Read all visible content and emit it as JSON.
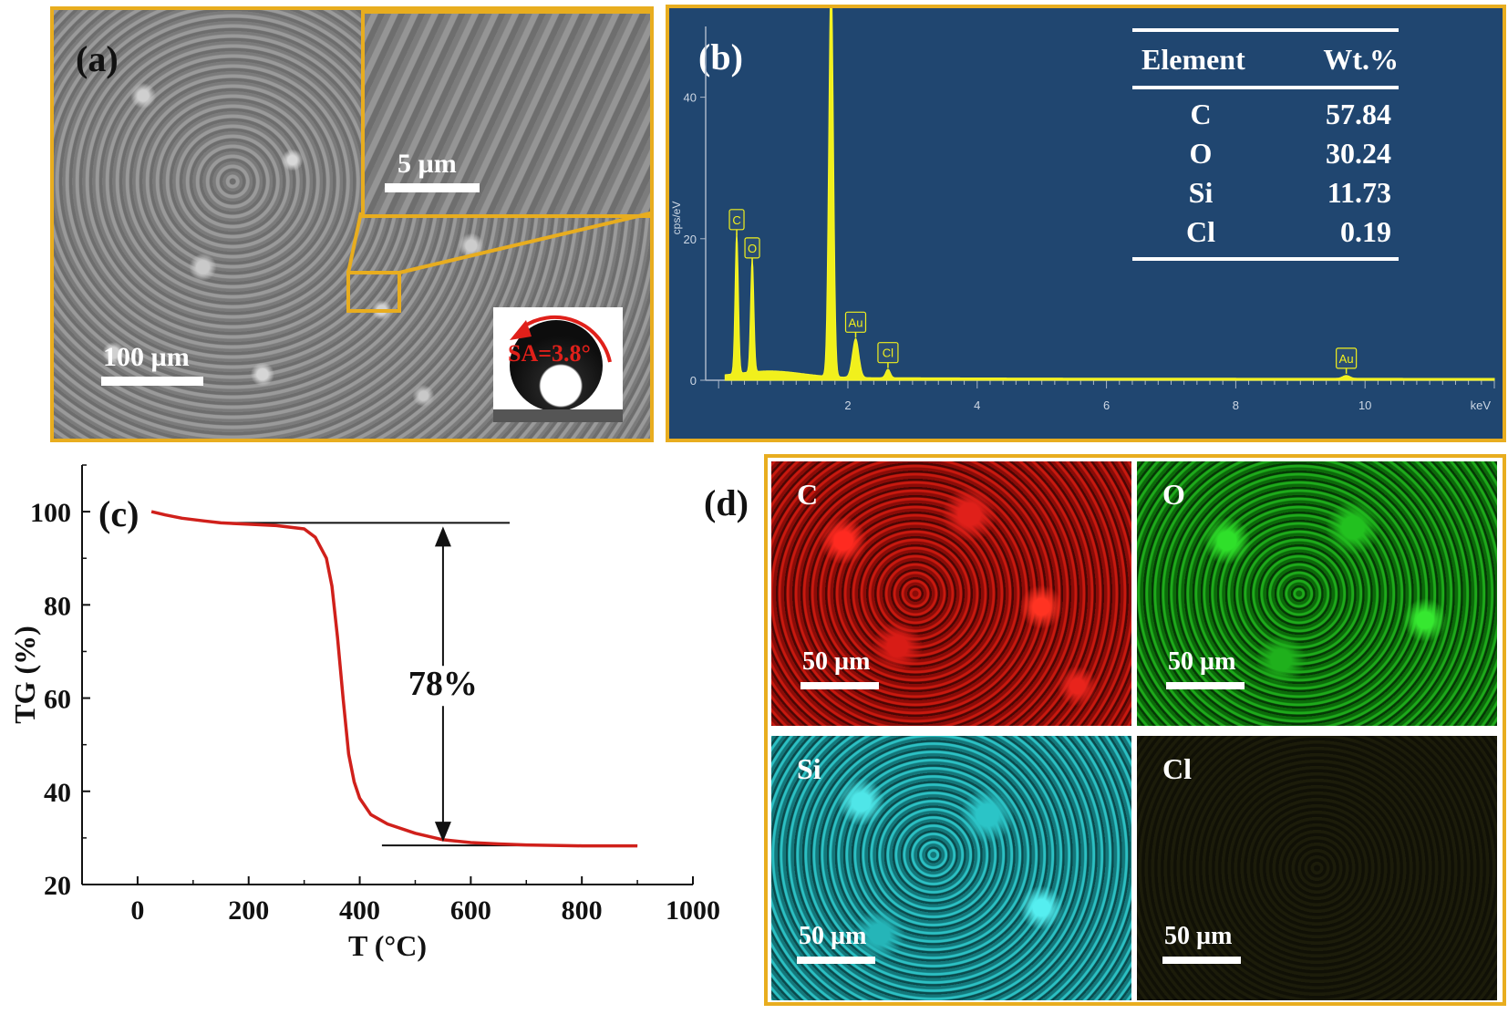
{
  "panel_a": {
    "label": "(a)",
    "inset_scale": "5 µm",
    "main_scale": "100 µm",
    "sa_label": "SA=3.8°"
  },
  "panel_b": {
    "label": "(b)",
    "y_axis_label": "cps/eV",
    "x_unit": "keV",
    "table": {
      "headers": [
        "Element",
        "Wt.%"
      ],
      "rows": [
        {
          "element": "C",
          "wt": "57.84"
        },
        {
          "element": "O",
          "wt": "30.24"
        },
        {
          "element": "Si",
          "wt": "11.73"
        },
        {
          "element": "Cl",
          "wt": "0.19"
        }
      ]
    },
    "chart_data": {
      "type": "line",
      "x_ticks": [
        "2",
        "4",
        "6",
        "8",
        "10"
      ],
      "y_ticks": [
        "0",
        "20",
        "40"
      ],
      "xlim": [
        -0.2,
        12
      ],
      "ylim": [
        0,
        50
      ],
      "peaks": [
        {
          "label": "C",
          "x": 0.28,
          "y": 20
        },
        {
          "label": "O",
          "x": 0.52,
          "y": 16
        },
        {
          "label": "Si",
          "x": 1.74,
          "y": 57
        },
        {
          "label": "Au",
          "x": 2.12,
          "y": 5.5
        },
        {
          "label": "Cl",
          "x": 2.62,
          "y": 1.2
        },
        {
          "label": "Au",
          "x": 9.71,
          "y": 0.4
        }
      ]
    }
  },
  "panel_c": {
    "label": "(c)",
    "annotation": "78%",
    "chart_data": {
      "type": "line",
      "xlabel": "T (°C)",
      "ylabel": "TG (%)",
      "xlim": [
        -100,
        1000
      ],
      "ylim": [
        20,
        110
      ],
      "x_ticks": [
        "0",
        "200",
        "400",
        "600",
        "800",
        "1000"
      ],
      "y_ticks": [
        "20",
        "40",
        "60",
        "80",
        "100"
      ],
      "x": [
        25,
        50,
        80,
        120,
        150,
        200,
        250,
        300,
        320,
        340,
        350,
        360,
        370,
        380,
        390,
        400,
        420,
        450,
        500,
        550,
        600,
        650,
        700,
        800,
        900
      ],
      "y": [
        100,
        99.3,
        98.6,
        98.0,
        97.6,
        97.3,
        97.0,
        96.3,
        94.5,
        90,
        84,
        73,
        60,
        48,
        42,
        38.5,
        35,
        33,
        31,
        29.6,
        29.0,
        28.7,
        28.5,
        28.3,
        28.3
      ],
      "reference_lines": [
        {
          "y": 97.6,
          "x_range": [
            150,
            670
          ]
        },
        {
          "y": 28.4,
          "x_range": [
            440,
            900
          ]
        }
      ]
    }
  },
  "panel_d": {
    "label": "(d)",
    "maps": [
      {
        "element": "C",
        "scale": "50 µm",
        "color": "#e2201a"
      },
      {
        "element": "O",
        "scale": "50 µm",
        "color": "#22c11f"
      },
      {
        "element": "Si",
        "scale": "50 µm",
        "color": "#2bc4c7"
      },
      {
        "element": "Cl",
        "scale": "50 µm",
        "color": "#3a3a10"
      }
    ]
  }
}
